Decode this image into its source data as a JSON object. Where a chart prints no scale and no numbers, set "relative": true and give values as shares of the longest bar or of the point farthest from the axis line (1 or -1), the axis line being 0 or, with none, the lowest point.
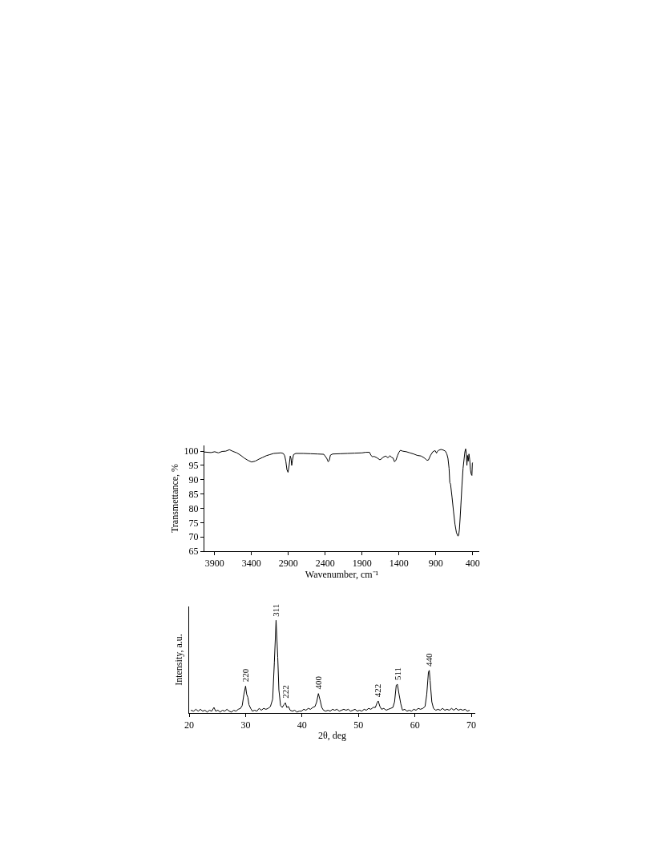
{
  "chart_data": [
    {
      "type": "line",
      "xlabel": "Wavenumber, cm⁻¹",
      "ylabel": "Transmettance, %",
      "xlim": [
        4040,
        310
      ],
      "ylim": [
        65,
        102
      ],
      "xticks": [
        3900,
        3400,
        2900,
        2400,
        1900,
        1400,
        900,
        400
      ],
      "yticks": [
        65,
        70,
        75,
        80,
        85,
        90,
        95,
        100
      ],
      "grid": false,
      "x": [
        4040,
        3950,
        3900,
        3850,
        3800,
        3750,
        3700,
        3650,
        3600,
        3550,
        3500,
        3450,
        3400,
        3350,
        3300,
        3250,
        3200,
        3150,
        3100,
        3050,
        3000,
        2970,
        2950,
        2935,
        2920,
        2905,
        2890,
        2875,
        2865,
        2855,
        2845,
        2830,
        2800,
        2700,
        2600,
        2500,
        2420,
        2380,
        2360,
        2345,
        2330,
        2300,
        2200,
        2100,
        2000,
        1900,
        1850,
        1800,
        1780,
        1760,
        1740,
        1700,
        1660,
        1640,
        1620,
        1580,
        1550,
        1520,
        1500,
        1480,
        1460,
        1440,
        1420,
        1400,
        1380,
        1350,
        1300,
        1250,
        1200,
        1150,
        1100,
        1060,
        1040,
        1020,
        1000,
        970,
        940,
        910,
        890,
        880,
        860,
        830,
        800,
        770,
        750,
        735,
        720,
        710,
        700,
        680,
        660,
        640,
        620,
        600,
        590,
        580,
        570,
        560,
        545,
        530,
        515,
        505,
        495,
        485,
        478,
        470,
        460,
        450,
        440,
        430,
        420,
        410,
        404,
        400
      ],
      "series": [
        {
          "color": "#000000",
          "values": [
            99.7,
            99.5,
            99.8,
            99.4,
            99.9,
            100.0,
            100.5,
            99.9,
            99.4,
            98.6,
            97.6,
            96.8,
            96.2,
            96.5,
            97.2,
            97.8,
            98.4,
            98.8,
            99.2,
            99.3,
            99.4,
            99.2,
            98.4,
            96.5,
            93.5,
            92.6,
            95.0,
            98.3,
            97.5,
            95.0,
            96.8,
            98.8,
            99.2,
            99.2,
            99.1,
            99.0,
            98.9,
            97.5,
            96.3,
            96.8,
            98.6,
            99.0,
            99.1,
            99.2,
            99.3,
            99.4,
            99.6,
            99.6,
            98.6,
            98.0,
            98.2,
            97.7,
            97.0,
            97.2,
            97.8,
            98.3,
            97.7,
            98.4,
            97.8,
            97.6,
            96.3,
            96.9,
            98.4,
            99.6,
            100.3,
            100.0,
            99.8,
            99.4,
            99.0,
            98.5,
            98.3,
            97.7,
            97.3,
            96.8,
            96.9,
            98.6,
            99.8,
            100.2,
            99.3,
            99.9,
            100.3,
            100.6,
            100.4,
            100.0,
            99.0,
            97.5,
            94.0,
            89.0,
            88.5,
            84.0,
            79.0,
            74.5,
            71.5,
            70.3,
            70.5,
            72.5,
            76.5,
            81.0,
            88.0,
            94.0,
            97.5,
            99.8,
            100.8,
            99.0,
            95.0,
            98.5,
            96.5,
            99.0,
            97.0,
            93.5,
            92.0,
            91.5,
            95.8,
            96.0
          ]
        }
      ]
    },
    {
      "type": "line",
      "xlabel": "2θ, deg",
      "ylabel": "Intensity, a.u.",
      "relative": true,
      "tick_labels": "x",
      "xlim": [
        20,
        70.7
      ],
      "xticks": [
        20,
        30,
        40,
        50,
        60,
        70
      ],
      "grid": false,
      "annotations": [
        {
          "text": "220",
          "x": 30.0,
          "y": 0.29
        },
        {
          "text": "311",
          "x": 35.4,
          "y": 1.0
        },
        {
          "text": "222",
          "x": 37.05,
          "y": 0.11
        },
        {
          "text": "400",
          "x": 42.9,
          "y": 0.21
        },
        {
          "text": "422",
          "x": 53.5,
          "y": 0.13
        },
        {
          "text": "511",
          "x": 56.9,
          "y": 0.31
        },
        {
          "text": "440",
          "x": 62.55,
          "y": 0.46
        }
      ],
      "x": [
        20.3,
        20.8,
        21.2,
        21.6,
        22.0,
        22.4,
        22.8,
        23.2,
        23.6,
        24.0,
        24.4,
        24.7,
        25.1,
        25.5,
        25.9,
        26.3,
        26.7,
        27.1,
        27.5,
        27.9,
        28.3,
        28.7,
        29.1,
        29.4,
        29.7,
        30.0,
        30.2,
        30.4,
        30.6,
        30.9,
        31.2,
        31.6,
        32.0,
        32.4,
        32.8,
        33.2,
        33.6,
        34.0,
        34.4,
        34.8,
        35.1,
        35.4,
        35.7,
        35.9,
        36.2,
        36.5,
        36.8,
        37.05,
        37.3,
        37.6,
        37.9,
        38.3,
        38.7,
        39.1,
        39.5,
        39.9,
        40.3,
        40.7,
        41.1,
        41.5,
        41.9,
        42.3,
        42.6,
        42.9,
        43.2,
        43.5,
        43.8,
        44.2,
        44.6,
        45.0,
        45.4,
        45.8,
        46.2,
        46.6,
        47.0,
        47.4,
        47.8,
        48.2,
        48.6,
        49.0,
        49.4,
        49.8,
        50.2,
        50.6,
        51.0,
        51.4,
        51.8,
        52.2,
        52.6,
        53.0,
        53.3,
        53.5,
        53.8,
        54.1,
        54.5,
        54.9,
        55.3,
        55.7,
        56.1,
        56.4,
        56.7,
        56.9,
        57.2,
        57.5,
        57.8,
        58.2,
        58.6,
        59.0,
        59.4,
        59.8,
        60.2,
        60.6,
        61.0,
        61.4,
        61.8,
        62.1,
        62.4,
        62.55,
        62.7,
        63.0,
        63.3,
        63.7,
        64.1,
        64.5,
        64.9,
        65.3,
        65.7,
        66.1,
        66.5,
        66.9,
        67.3,
        67.7,
        68.1,
        68.5,
        68.9,
        69.3,
        69.7
      ],
      "series": [
        {
          "color": "#000000",
          "values": [
            0.03,
            0.02,
            0.04,
            0.02,
            0.04,
            0.02,
            0.03,
            0.01,
            0.03,
            0.02,
            0.06,
            0.02,
            0.03,
            0.01,
            0.03,
            0.02,
            0.04,
            0.02,
            0.01,
            0.03,
            0.02,
            0.04,
            0.05,
            0.08,
            0.2,
            0.29,
            0.2,
            0.17,
            0.09,
            0.05,
            0.02,
            0.03,
            0.02,
            0.05,
            0.03,
            0.05,
            0.04,
            0.05,
            0.07,
            0.15,
            0.55,
            1.0,
            0.6,
            0.25,
            0.08,
            0.06,
            0.09,
            0.11,
            0.06,
            0.07,
            0.03,
            0.02,
            0.03,
            0.01,
            0.02,
            0.02,
            0.04,
            0.03,
            0.05,
            0.04,
            0.06,
            0.07,
            0.12,
            0.21,
            0.14,
            0.06,
            0.03,
            0.02,
            0.03,
            0.02,
            0.04,
            0.03,
            0.04,
            0.02,
            0.03,
            0.04,
            0.03,
            0.04,
            0.02,
            0.03,
            0.04,
            0.02,
            0.03,
            0.02,
            0.04,
            0.03,
            0.05,
            0.04,
            0.06,
            0.06,
            0.11,
            0.13,
            0.07,
            0.04,
            0.05,
            0.03,
            0.04,
            0.05,
            0.06,
            0.12,
            0.3,
            0.31,
            0.2,
            0.1,
            0.03,
            0.04,
            0.02,
            0.03,
            0.02,
            0.04,
            0.03,
            0.05,
            0.04,
            0.05,
            0.07,
            0.2,
            0.44,
            0.46,
            0.35,
            0.12,
            0.05,
            0.03,
            0.04,
            0.03,
            0.05,
            0.03,
            0.04,
            0.03,
            0.05,
            0.03,
            0.05,
            0.03,
            0.04,
            0.03,
            0.04,
            0.02,
            0.03
          ]
        }
      ]
    }
  ]
}
